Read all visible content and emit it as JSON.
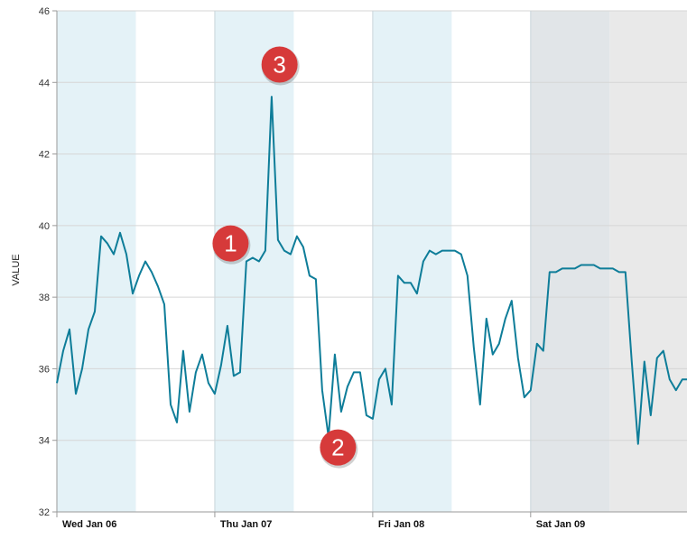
{
  "chart_data": {
    "type": "line",
    "title": "",
    "ylabel": "VALUE",
    "xlabel": "",
    "ylim": [
      32,
      46
    ],
    "yticks": [
      32,
      34,
      36,
      38,
      40,
      42,
      44,
      46
    ],
    "x_range_days": [
      6.0,
      9.99
    ],
    "xtick_labels": [
      {
        "day": 6,
        "label": "Wed Jan 06"
      },
      {
        "day": 7,
        "label": "Thu Jan 07"
      },
      {
        "day": 8,
        "label": "Fri Jan 08"
      },
      {
        "day": 9,
        "label": "Sat Jan 09"
      }
    ],
    "shaded_bands": [
      {
        "from": 6.0,
        "to": 6.5,
        "color": "#e4f2f7"
      },
      {
        "from": 7.0,
        "to": 7.5,
        "color": "#e4f2f7"
      },
      {
        "from": 8.0,
        "to": 8.5,
        "color": "#e4f2f7"
      },
      {
        "from": 9.0,
        "to": 9.5,
        "color": "#e1e5e8"
      },
      {
        "from": 9.5,
        "to": 9.99,
        "color": "#e9e9e9"
      }
    ],
    "line_color": "#0e7d99",
    "grid": true,
    "series": [
      {
        "x": [
          6.0,
          6.04,
          6.08,
          6.12,
          6.16,
          6.2,
          6.24,
          6.28,
          6.32,
          6.36,
          6.4,
          6.44,
          6.48,
          6.52,
          6.56,
          6.6,
          6.64,
          6.68,
          6.72,
          6.76,
          6.8,
          6.84,
          6.88,
          6.92,
          6.96,
          7.0,
          7.04,
          7.08,
          7.12,
          7.16,
          7.2,
          7.24,
          7.28,
          7.32,
          7.36,
          7.4,
          7.44,
          7.48,
          7.52,
          7.56,
          7.6,
          7.64,
          7.68,
          7.72,
          7.76,
          7.8,
          7.84,
          7.88,
          7.92,
          7.96,
          8.0,
          8.04,
          8.08,
          8.12,
          8.16,
          8.2,
          8.24,
          8.28,
          8.32,
          8.36,
          8.4,
          8.44,
          8.48,
          8.52,
          8.56,
          8.6,
          8.64,
          8.68,
          8.72,
          8.76,
          8.8,
          8.84,
          8.88,
          8.92,
          8.96,
          9.0,
          9.04,
          9.08,
          9.12,
          9.16,
          9.2,
          9.24,
          9.28,
          9.32,
          9.36,
          9.4,
          9.44,
          9.48,
          9.52,
          9.56,
          9.6,
          9.64,
          9.68,
          9.72,
          9.76,
          9.8,
          9.84,
          9.88,
          9.92,
          9.96,
          9.99
        ],
        "y": [
          35.6,
          36.5,
          37.1,
          35.3,
          36.0,
          37.1,
          37.6,
          39.7,
          39.5,
          39.2,
          39.8,
          39.2,
          38.1,
          38.6,
          39.0,
          38.7,
          38.3,
          37.8,
          35.0,
          34.5,
          36.5,
          34.8,
          35.9,
          36.4,
          35.6,
          35.3,
          36.1,
          37.2,
          35.8,
          35.9,
          39.0,
          39.1,
          39.0,
          39.3,
          43.6,
          39.6,
          39.3,
          39.2,
          39.7,
          39.4,
          38.6,
          38.5,
          35.4,
          34.1,
          36.4,
          34.8,
          35.5,
          35.9,
          35.9,
          34.7,
          34.6,
          35.7,
          36.0,
          35.0,
          38.6,
          38.4,
          38.4,
          38.1,
          39.0,
          39.3,
          39.2,
          39.3,
          39.3,
          39.3,
          39.2,
          38.6,
          36.6,
          35.0,
          37.4,
          36.4,
          36.7,
          37.4,
          37.9,
          36.3,
          35.2,
          35.4,
          36.7,
          36.5,
          38.7,
          38.7,
          38.8,
          38.8,
          38.8,
          38.9,
          38.9,
          38.9,
          38.8,
          38.8,
          38.8,
          38.7,
          38.7,
          36.2,
          33.9,
          36.2,
          34.7,
          36.3,
          36.5,
          35.7,
          35.4,
          35.7,
          35.7
        ]
      }
    ],
    "annotations": [
      {
        "label": "1",
        "day": 7.1,
        "value": 39.5,
        "color": "#d63a3a"
      },
      {
        "label": "2",
        "day": 7.78,
        "value": 33.8,
        "color": "#d63a3a"
      },
      {
        "label": "3",
        "day": 7.41,
        "value": 44.5,
        "color": "#d63a3a"
      }
    ]
  }
}
